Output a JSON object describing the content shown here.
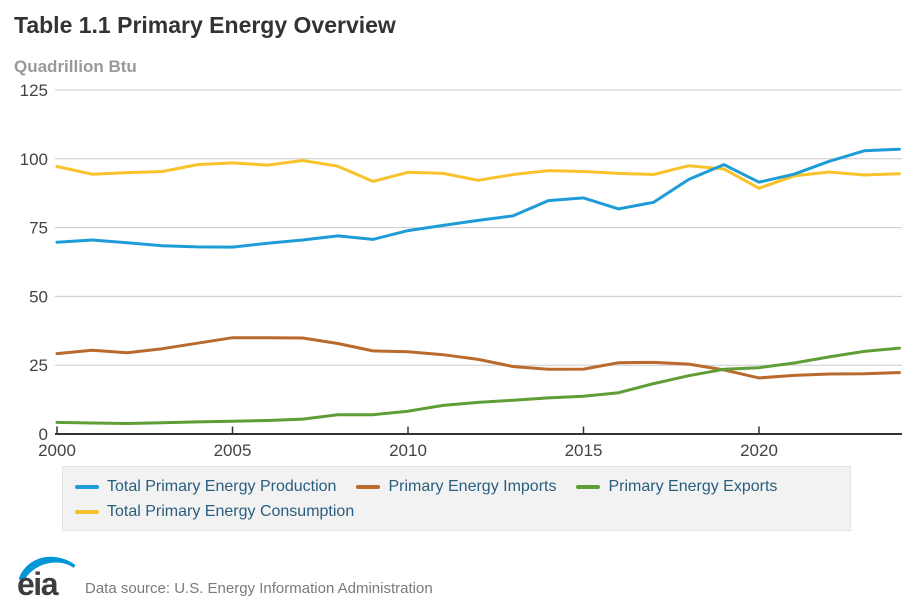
{
  "page": {
    "title": "Table 1.1 Primary Energy Overview",
    "units_label": "Quadrillion Btu",
    "logo_text": "eia",
    "source_note": "Data source: U.S. Energy Information Administration"
  },
  "colors": {
    "production": "#1e9cd7",
    "imports": "#b96a2c",
    "exports": "#5f9e36",
    "consumption": "#f8c32a",
    "gridline": "#cccccc",
    "axis": "#333333",
    "tick_label": "#444444",
    "legend_text": "#2a5e7e",
    "legend_bg": "#f2f2f2",
    "title_text": "#333333",
    "units_text": "#999999",
    "logo_blue": "#0096d7",
    "logo_gray": "#3d3d3d"
  },
  "chart_data": {
    "type": "line",
    "title": "Table 1.1 Primary Energy Overview",
    "ylabel": "Quadrillion Btu",
    "xlabel": "",
    "grid": true,
    "legend_position": "bottom",
    "ylim": [
      0,
      125
    ],
    "xlim": [
      2000,
      2024
    ],
    "yticks": [
      0,
      25,
      50,
      75,
      100,
      125
    ],
    "xticks": [
      2000,
      2005,
      2010,
      2015,
      2020
    ],
    "x": [
      2000,
      2001,
      2002,
      2003,
      2004,
      2005,
      2006,
      2007,
      2008,
      2009,
      2010,
      2011,
      2012,
      2013,
      2014,
      2015,
      2016,
      2017,
      2018,
      2019,
      2020,
      2021,
      2022,
      2023,
      2024
    ],
    "series": [
      {
        "name": "Total Primary Energy Production",
        "color": "#1e9cd7",
        "values": [
          69.7,
          70.5,
          69.5,
          68.4,
          68.0,
          67.9,
          69.3,
          70.5,
          72.0,
          70.7,
          73.9,
          75.8,
          77.6,
          79.3,
          84.8,
          85.8,
          81.8,
          84.2,
          92.5,
          97.9,
          91.5,
          94.4,
          99.1,
          102.9,
          103.5
        ]
      },
      {
        "name": "Primary Energy Imports",
        "color": "#b96a2c",
        "values": [
          29.2,
          30.4,
          29.5,
          31.0,
          33.0,
          35.0,
          35.0,
          34.9,
          32.9,
          30.2,
          29.9,
          28.8,
          27.1,
          24.5,
          23.5,
          23.6,
          25.9,
          26.0,
          25.4,
          23.3,
          20.4,
          21.3,
          21.8,
          21.9,
          22.3
        ]
      },
      {
        "name": "Primary Energy Exports",
        "color": "#5f9e36",
        "values": [
          4.2,
          4.0,
          3.8,
          4.1,
          4.4,
          4.6,
          4.9,
          5.4,
          7.0,
          7.0,
          8.3,
          10.4,
          11.5,
          12.3,
          13.1,
          13.7,
          15.0,
          18.3,
          21.2,
          23.5,
          24.1,
          25.8,
          28.0,
          30.0,
          31.2
        ]
      },
      {
        "name": "Total Primary Energy Consumption",
        "color": "#f8c32a",
        "values": [
          97.2,
          94.4,
          95.0,
          95.4,
          97.9,
          98.5,
          97.7,
          99.4,
          97.3,
          91.8,
          95.1,
          94.7,
          92.2,
          94.3,
          95.7,
          95.4,
          94.7,
          94.3,
          97.5,
          96.3,
          89.3,
          93.8,
          95.2,
          94.1,
          94.6
        ]
      }
    ]
  }
}
